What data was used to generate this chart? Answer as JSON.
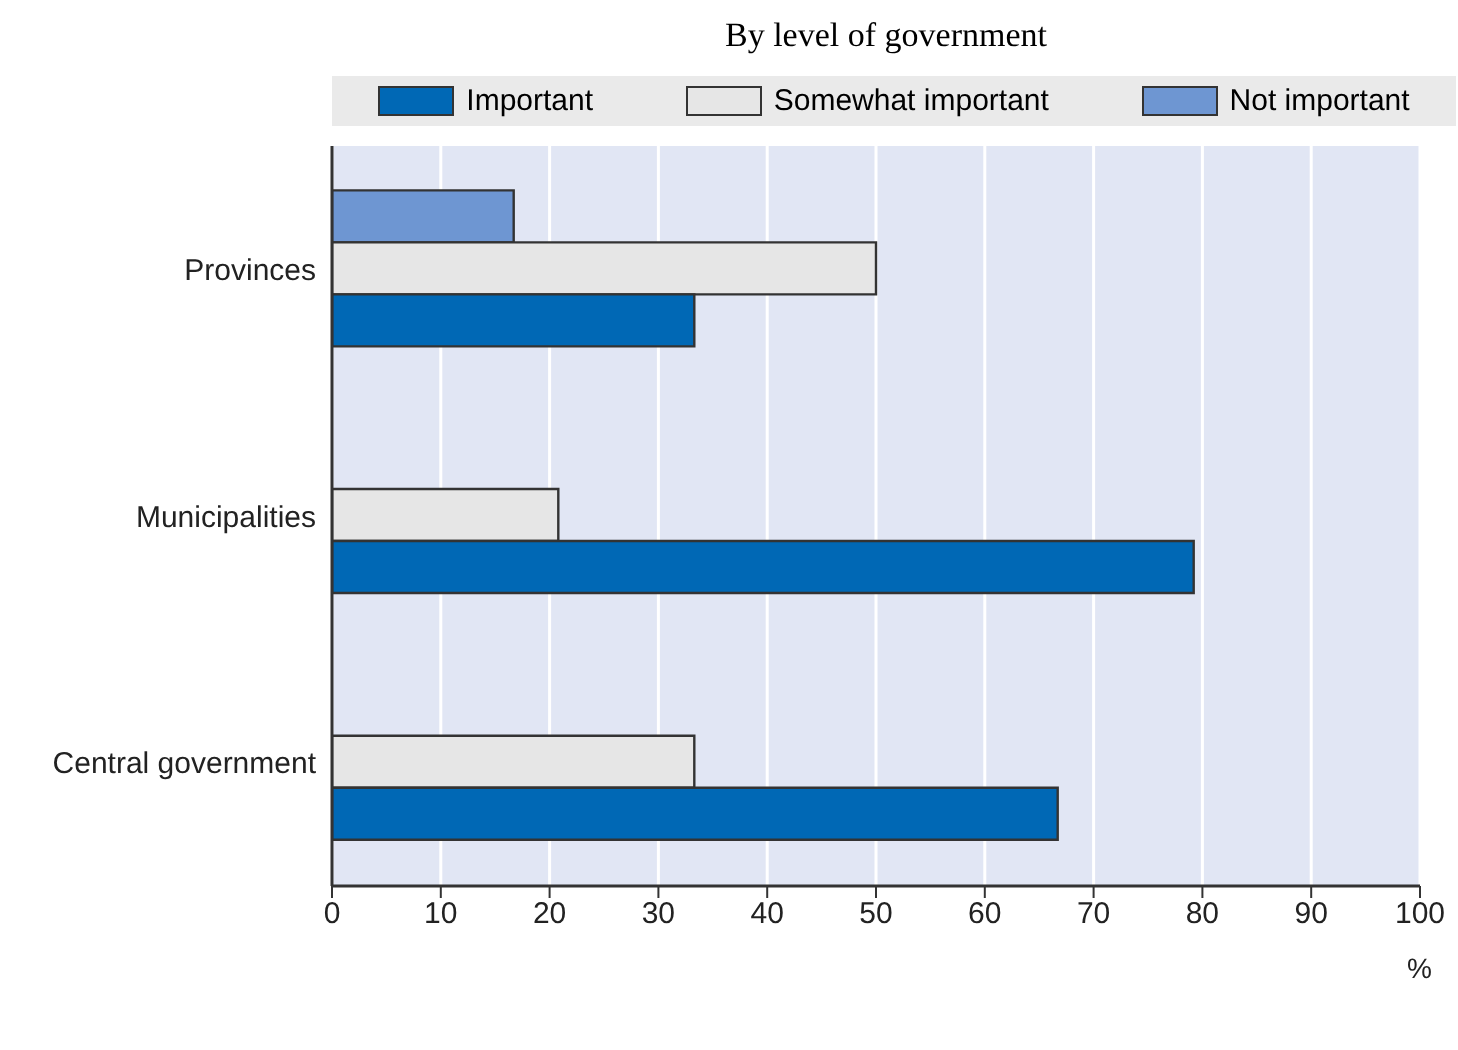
{
  "chart_data": {
    "type": "bar",
    "orientation": "horizontal",
    "subtitle": "By level of government",
    "xlabel": "%",
    "categories": [
      "Provinces",
      "Municipalities",
      "Central government"
    ],
    "series": [
      {
        "name": "Important",
        "color": "#0068b5",
        "values": [
          33.3,
          79.2,
          66.7
        ]
      },
      {
        "name": "Somewhat important",
        "color": "#e6e6e6",
        "values": [
          50,
          20.8,
          33.3
        ]
      },
      {
        "name": "Not important",
        "color": "#6e96d2",
        "values": [
          16.7,
          0,
          0
        ]
      }
    ],
    "xlim": [
      0,
      100
    ],
    "xticks": [
      0,
      10,
      20,
      30,
      40,
      50,
      60,
      70,
      80,
      90,
      100
    ],
    "grid": "x",
    "legend": "top"
  }
}
